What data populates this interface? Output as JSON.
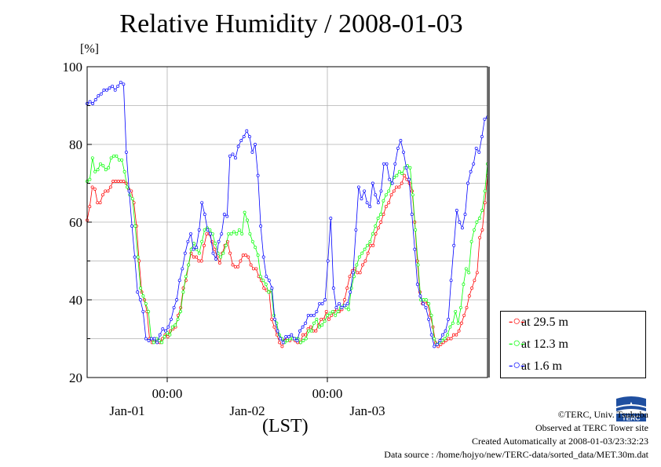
{
  "chart_data": {
    "type": "line",
    "title": "Relative Humidity / 2008-01-03",
    "unit": "[%]",
    "xlabel": "(LST)",
    "ylim": [
      20,
      100
    ],
    "y_ticks": [
      20,
      40,
      60,
      80,
      100
    ],
    "xlim_hours": [
      -36,
      24
    ],
    "x_ticks": [
      {
        "h": -24,
        "label": "00:00"
      },
      {
        "h": 0,
        "label": "00:00"
      }
    ],
    "day_labels": [
      {
        "h": -30,
        "label": "Jan-01"
      },
      {
        "h": -12,
        "label": "Jan-02"
      },
      {
        "h": 6,
        "label": "Jan-03"
      }
    ],
    "grid": true,
    "legend": "bottom-right",
    "series": [
      {
        "name": "at 29.5 m",
        "color": "#ff0000",
        "values": [
          60.5,
          64,
          69,
          68.5,
          65,
          65,
          67,
          68,
          68,
          69,
          70.5,
          70.5,
          70.5,
          70.5,
          70.5,
          70,
          68.5,
          68,
          65,
          59,
          50,
          42,
          40,
          37,
          30,
          29,
          29.5,
          29.5,
          29,
          30,
          31,
          30.5,
          32,
          32.5,
          33,
          36,
          38,
          43,
          45,
          49,
          52,
          51,
          51,
          50,
          50,
          54,
          57,
          57,
          55,
          53,
          51,
          49.5,
          52,
          54,
          55,
          52,
          49,
          48.5,
          48.5,
          50,
          51.5,
          51.5,
          51,
          49,
          48,
          48,
          46,
          45,
          43,
          42.5,
          42,
          35,
          33,
          31,
          29,
          28,
          29.5,
          30,
          29.5,
          30,
          29.5,
          29,
          29,
          31,
          31,
          32.5,
          33,
          32,
          32,
          33.5,
          35,
          35,
          37,
          35,
          36,
          37,
          37.5,
          37,
          37.5,
          40,
          43,
          46,
          47.5,
          48,
          47,
          47,
          49,
          50,
          52,
          54,
          54,
          57,
          58.5,
          60,
          62,
          64,
          65,
          67,
          68,
          69,
          69,
          70,
          72,
          71,
          70,
          68,
          60,
          50,
          42,
          39,
          39.5,
          39,
          36,
          33,
          29,
          28,
          28.5,
          29,
          29.5,
          30,
          30,
          31,
          31,
          32,
          34,
          36,
          38,
          41,
          43,
          45,
          47,
          56,
          58,
          65,
          72
        ]
      },
      {
        "name": "at 12.3 m",
        "color": "#00ff00",
        "values": [
          70.5,
          71,
          76.5,
          73,
          73.5,
          75,
          74.5,
          73.5,
          74,
          76.5,
          77,
          77,
          76,
          76,
          73,
          69,
          67,
          66,
          59,
          51,
          43,
          41,
          39,
          37,
          30,
          29,
          30,
          29.5,
          29,
          30.5,
          31.5,
          31,
          33,
          33.5,
          35,
          37,
          42,
          46,
          49,
          53,
          54.5,
          53,
          52,
          55,
          58,
          58.5,
          58,
          57,
          54.5,
          52,
          51,
          52,
          54,
          57,
          57,
          57.5,
          57,
          58,
          57,
          62.5,
          60.5,
          57,
          55,
          53.5,
          51.5,
          46,
          45,
          44,
          42,
          42.5,
          36,
          34,
          31,
          30,
          29,
          29.5,
          30,
          30,
          30,
          30,
          29,
          29.5,
          30,
          32,
          32,
          34,
          35,
          33,
          33.5,
          34.5,
          36,
          36.5,
          37,
          36,
          37,
          38,
          38.5,
          38,
          37.5,
          43,
          46,
          49,
          51,
          52,
          53,
          54,
          55,
          57,
          59,
          61,
          62,
          65.5,
          67,
          68,
          70,
          71.5,
          72,
          73,
          72.5,
          74,
          74.5,
          74,
          67,
          58,
          49,
          40,
          40,
          40,
          39,
          36,
          30,
          28.5,
          29,
          29.5,
          30,
          31,
          33,
          34,
          37,
          34,
          38,
          44,
          48,
          47,
          55,
          58,
          60,
          61,
          63,
          68,
          75
        ]
      },
      {
        "name": "at 1.6 m",
        "color": "#0000ff",
        "values": [
          90.5,
          91,
          90.5,
          91.5,
          92.5,
          93,
          94,
          94,
          94.5,
          95,
          94,
          95,
          96,
          95.5,
          78,
          68,
          59,
          51,
          42,
          40,
          37,
          30,
          29.5,
          30,
          30,
          29,
          31,
          32.5,
          32,
          33,
          35,
          38,
          40,
          45,
          48,
          52,
          55,
          57,
          53,
          53.5,
          58,
          65,
          62,
          58,
          57,
          52,
          50.5,
          55,
          57,
          62,
          61.5,
          77,
          77.5,
          76.5,
          79.5,
          81,
          82,
          83.5,
          82,
          78,
          80,
          72,
          59,
          51,
          46,
          45,
          43,
          35,
          32,
          30,
          29,
          30.5,
          30.5,
          31,
          30,
          29.5,
          32,
          33,
          34,
          36,
          36,
          36,
          37,
          39,
          39,
          40,
          50,
          61,
          43,
          38,
          39,
          38,
          38.5,
          39,
          42,
          47,
          58,
          69,
          66,
          68,
          65,
          64,
          70,
          67,
          65,
          68,
          75,
          75,
          71,
          70,
          75,
          79,
          81,
          78,
          74,
          71,
          62,
          53,
          44,
          41,
          39,
          38,
          35,
          31,
          28,
          28.5,
          29.5,
          31,
          32,
          35,
          45,
          54,
          63,
          60,
          58.5,
          62,
          70,
          73,
          75,
          79,
          78,
          82,
          86.5,
          87
        ]
      }
    ]
  },
  "credits": {
    "copyright": "©TERC, Univ. Tsukuba",
    "observed": "Observed at TERC Tower site",
    "created": "Created Automatically at 2008-01-03/23:32:23",
    "source": "Data source : /home/hojyo/new/TERC-data/sorted_data/MET.30m.dat",
    "logo_text": "TERC"
  }
}
